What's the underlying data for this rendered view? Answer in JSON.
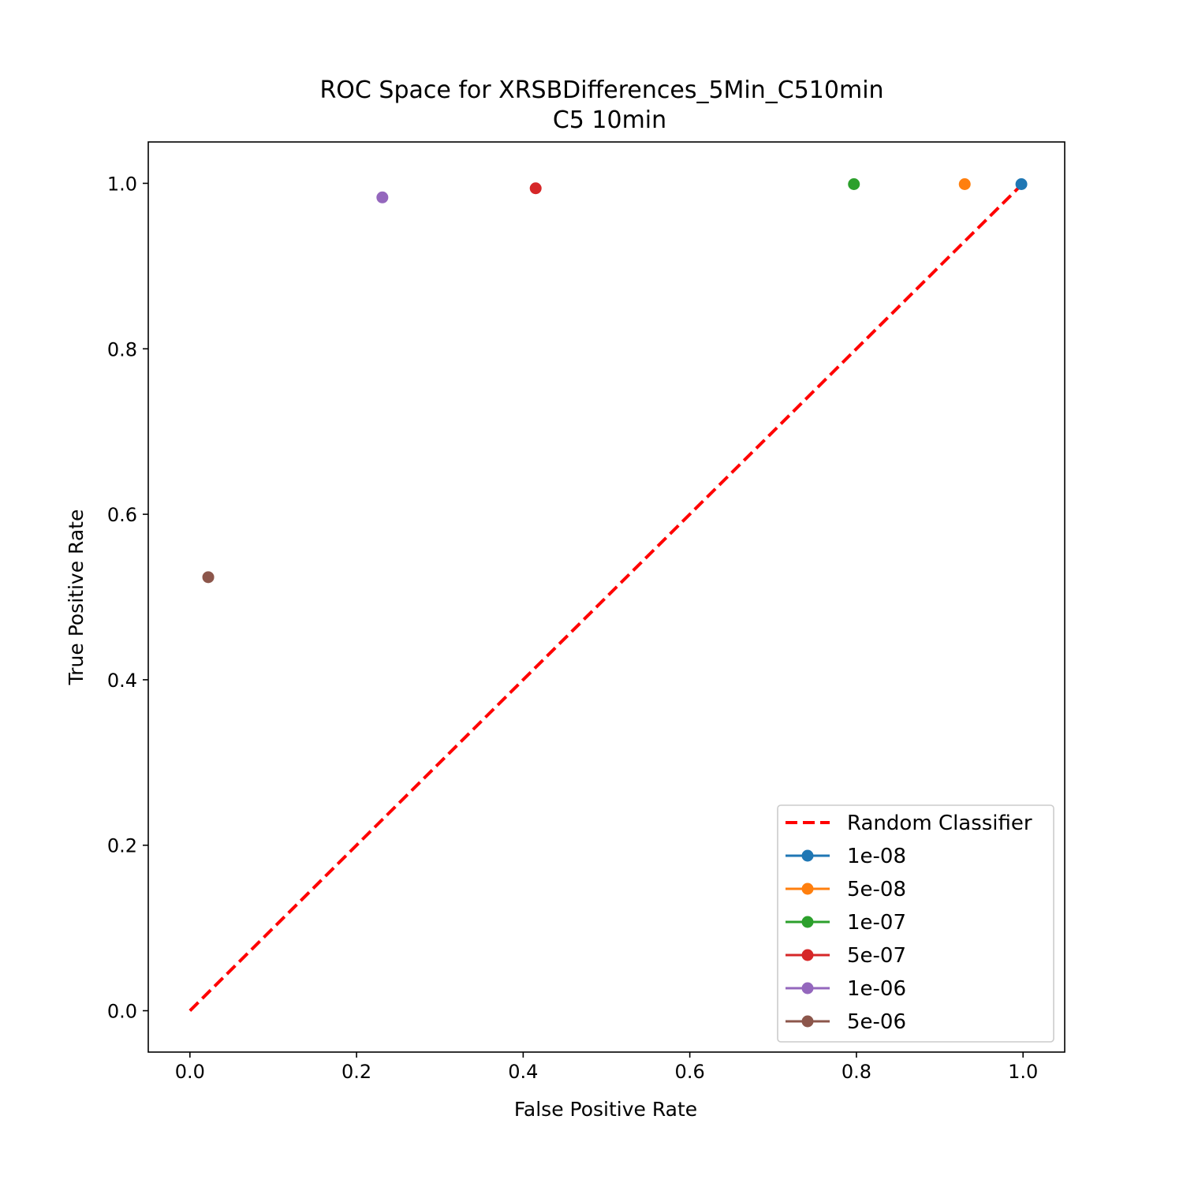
{
  "chart_data": {
    "type": "scatter",
    "title": "ROC Space for XRSBDifferences_5Min_C510min",
    "subtitle": "C5 10min",
    "xlabel": "False Positive Rate",
    "ylabel": "True Positive Rate",
    "xlim": [
      -0.05,
      1.05
    ],
    "ylim": [
      -0.05,
      1.05
    ],
    "xticks": [
      "0.0",
      "0.2",
      "0.4",
      "0.6",
      "0.8",
      "1.0"
    ],
    "yticks": [
      "0.0",
      "0.2",
      "0.4",
      "0.6",
      "0.8",
      "1.0"
    ],
    "grid": false,
    "legend_position": "lower-right",
    "reference_line": {
      "name": "Random Classifier",
      "color": "#ff0000",
      "style": "dashed",
      "x": [
        0,
        1
      ],
      "y": [
        0,
        1
      ]
    },
    "series": [
      {
        "name": "1e-08",
        "color": "#1f77b4",
        "x": 0.998,
        "y": 0.999
      },
      {
        "name": "5e-08",
        "color": "#ff7f0e",
        "x": 0.93,
        "y": 0.999
      },
      {
        "name": "1e-07",
        "color": "#2ca02c",
        "x": 0.797,
        "y": 0.999
      },
      {
        "name": "5e-07",
        "color": "#d62728",
        "x": 0.415,
        "y": 0.994
      },
      {
        "name": "1e-06",
        "color": "#9467bd",
        "x": 0.231,
        "y": 0.983
      },
      {
        "name": "5e-06",
        "color": "#8c564b",
        "x": 0.022,
        "y": 0.524
      }
    ]
  }
}
